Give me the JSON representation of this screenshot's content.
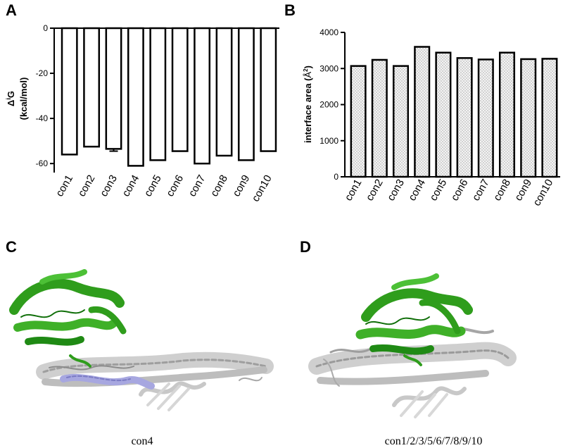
{
  "panels": {
    "a": "A",
    "b": "B",
    "c": "C",
    "d": "D"
  },
  "captions": {
    "c": "con4",
    "d": "con1/2/3/5/6/7/8/9/10"
  },
  "colors": {
    "bar_a_fill": "#ffffff",
    "bar_b_fill": "#f0f0f0",
    "protein_green": "#2e9e1f",
    "protein_gray": "#bdbdbd",
    "protein_blue": "#9a9ad8"
  },
  "chart_data": [
    {
      "type": "bar",
      "title": "",
      "xlabel": "",
      "ylabel_main": "Δ",
      "ylabel_sup": "i",
      "ylabel_suffix": "G",
      "ylabel_unit": "(kcal/mol)",
      "categories": [
        "con1",
        "con2",
        "con3",
        "con4",
        "con5",
        "con6",
        "con7",
        "con8",
        "con9",
        "con10"
      ],
      "values": [
        -56,
        -52.5,
        -53.5,
        -61,
        -58.5,
        -54.5,
        -60,
        -56.5,
        -58.5,
        -54.5
      ],
      "errors": [
        0,
        0,
        1,
        0,
        0,
        0,
        0,
        0,
        0,
        0
      ],
      "ylim": [
        -64,
        0
      ],
      "yticks": [
        0,
        -20,
        -40,
        -60
      ],
      "grid": false,
      "legend": "none"
    },
    {
      "type": "bar",
      "title": "",
      "xlabel": "",
      "ylabel": "interface area (Å²)",
      "ylabel_text": "interface area (",
      "ylabel_unit": "Å",
      "ylabel_sup": "2",
      "ylabel_close": ")",
      "categories": [
        "con1",
        "con2",
        "con3",
        "con4",
        "con5",
        "con6",
        "con7",
        "con8",
        "con9",
        "con10"
      ],
      "values": [
        3070,
        3240,
        3070,
        3600,
        3440,
        3290,
        3250,
        3440,
        3260,
        3270
      ],
      "ylim": [
        0,
        4000
      ],
      "yticks": [
        0,
        1000,
        2000,
        3000,
        4000
      ],
      "grid": false,
      "legend": "none"
    }
  ]
}
